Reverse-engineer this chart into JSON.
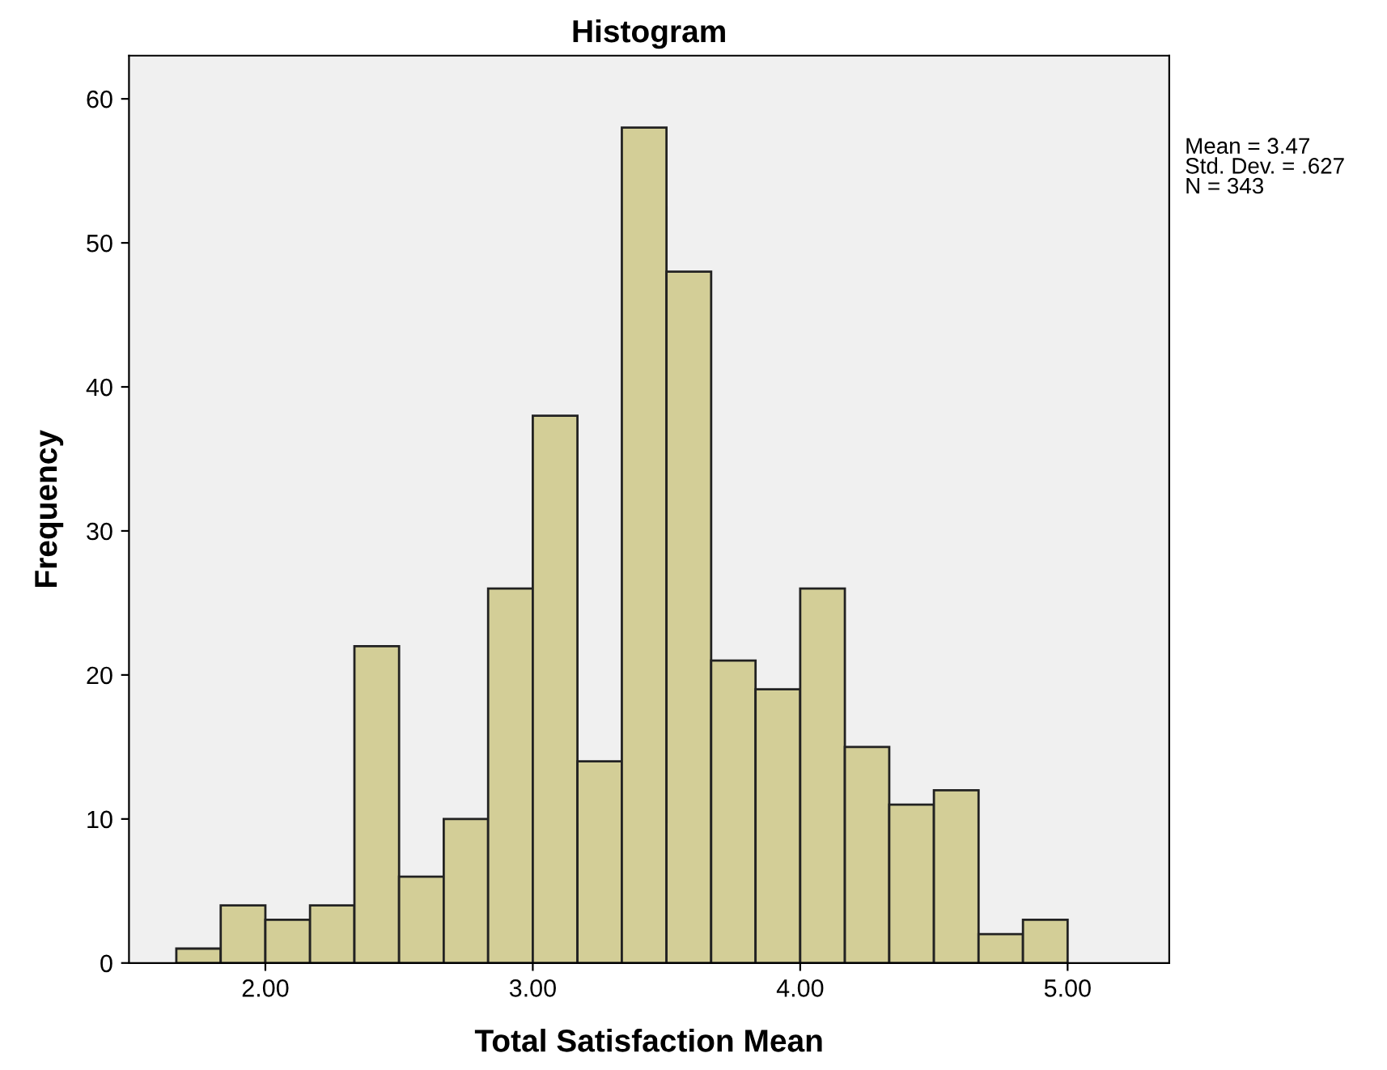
{
  "chart_data": {
    "type": "histogram",
    "title": "Histogram",
    "xlabel": "Total Satisfaction Mean",
    "ylabel": "Frequency",
    "bins": [
      1.667,
      1.833,
      2.0,
      2.167,
      2.333,
      2.5,
      2.667,
      2.833,
      3.0,
      3.167,
      3.333,
      3.5,
      3.667,
      3.833,
      4.0,
      4.167,
      4.333,
      4.5,
      4.667,
      4.833,
      5.0
    ],
    "values": [
      1,
      4,
      3,
      4,
      22,
      6,
      10,
      26,
      38,
      14,
      58,
      48,
      21,
      19,
      26,
      15,
      11,
      12,
      2,
      3
    ],
    "color": "#d3ce97",
    "xlim": [
      1.49,
      5.38
    ],
    "xticks": [
      {
        "value": 2,
        "label": "2.00"
      },
      {
        "value": 3,
        "label": "3.00"
      },
      {
        "value": 4,
        "label": "4.00"
      },
      {
        "value": 5,
        "label": "5.00"
      }
    ],
    "ylim": [
      0,
      63
    ],
    "yticks": [
      0,
      10,
      20,
      30,
      40,
      50,
      60
    ],
    "grid": false,
    "annotations": [
      "Mean = 3.47",
      "Std. Dev. = .627",
      "N = 343"
    ]
  }
}
